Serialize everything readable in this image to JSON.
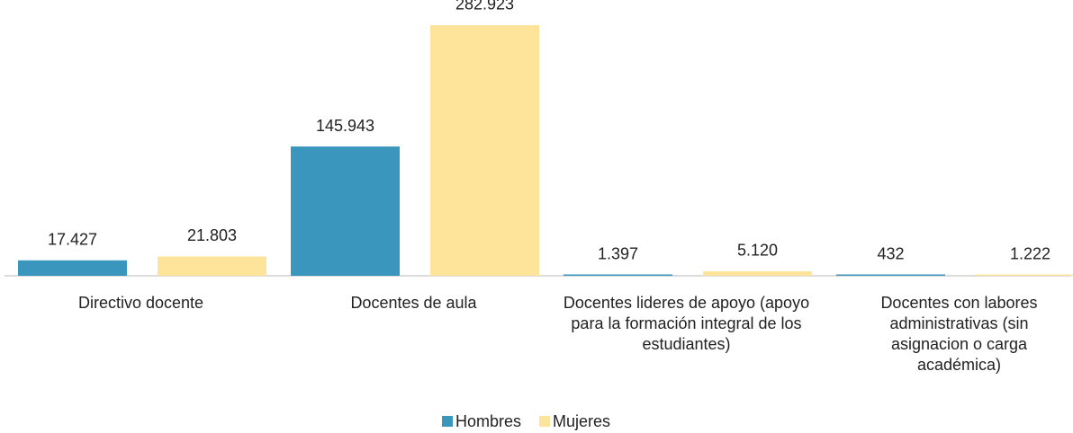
{
  "chart_data": {
    "type": "bar",
    "categories": [
      "Directivo docente",
      "Docentes de aula",
      "Docentes lideres de apoyo (apoyo para la formación integral de los estudiantes)",
      "Docentes con labores administrativas (sin asignacion o carga académica)"
    ],
    "series": [
      {
        "name": "Hombres",
        "color": "#3a96bd",
        "values": [
          17427,
          145943,
          1397,
          432
        ],
        "value_labels": [
          "17.427",
          "145.943",
          "1.397",
          "432"
        ]
      },
      {
        "name": "Mujeres",
        "color": "#fde49a",
        "values": [
          21803,
          282923,
          5120,
          1222
        ],
        "value_labels": [
          "21.803",
          "282.923",
          "5.120",
          "1.222"
        ]
      }
    ],
    "ylim": [
      0,
      290000
    ],
    "legend": "bottom"
  }
}
